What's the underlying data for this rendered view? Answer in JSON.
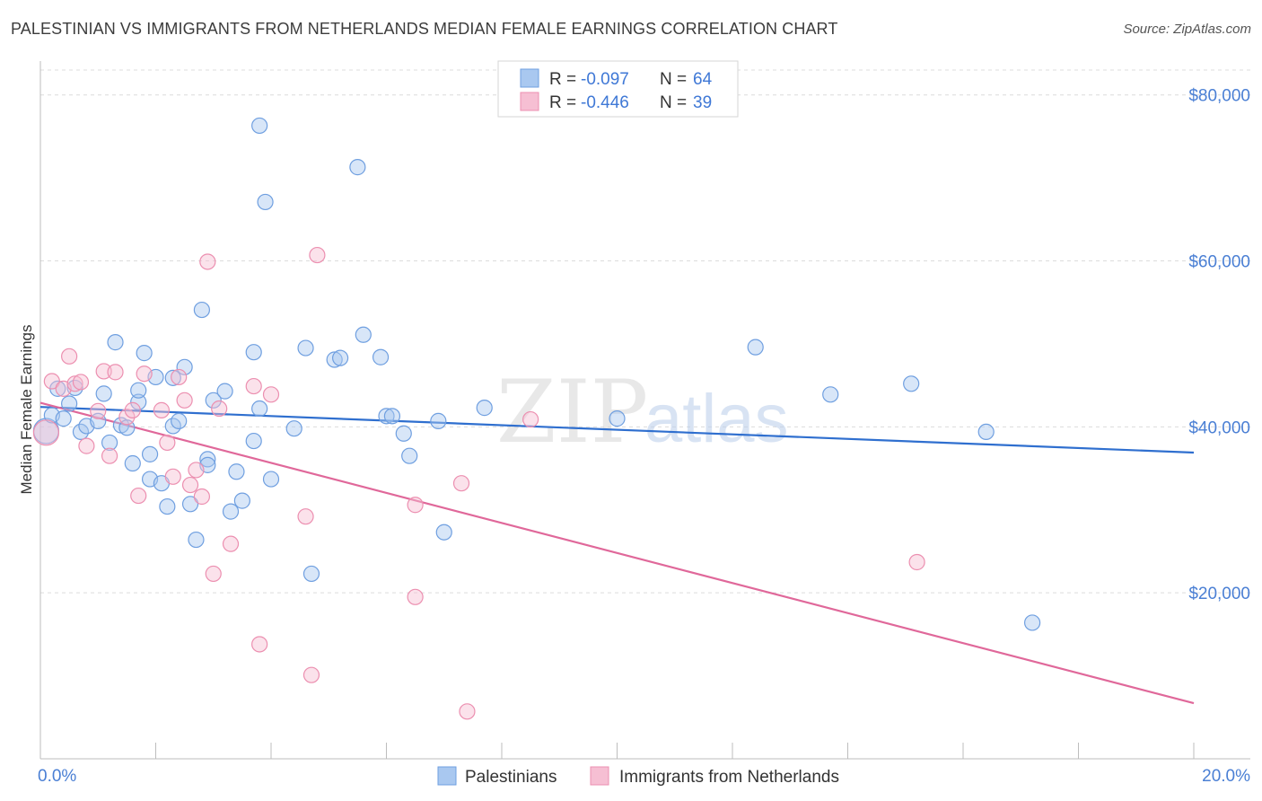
{
  "title": "PALESTINIAN VS IMMIGRANTS FROM NETHERLANDS MEDIAN FEMALE EARNINGS CORRELATION CHART",
  "source": "Source: ZipAtlas.com",
  "watermark": {
    "zip": "ZIP",
    "atlas": "atlas"
  },
  "colors": {
    "blue": "#6f9fe0",
    "blue_fill": "#a9c8f0",
    "blue_line": "#2f6fcf",
    "pink": "#ec8fb0",
    "pink_fill": "#f6bfd3",
    "pink_line": "#e0689a",
    "axis_text": "#4a7fd4"
  },
  "legend": {
    "rows": [
      {
        "r_label": "R = ",
        "r_value": "-0.097",
        "n_label": "N = ",
        "n_value": "64"
      },
      {
        "r_label": "R = ",
        "r_value": "-0.446",
        "n_label": "N = ",
        "n_value": "39"
      }
    ]
  },
  "chart_data": {
    "type": "scatter",
    "title": "PALESTINIAN VS IMMIGRANTS FROM NETHERLANDS MEDIAN FEMALE EARNINGS CORRELATION CHART",
    "xlabel": "",
    "ylabel": "Median Female Earnings",
    "xlim": [
      0,
      20
    ],
    "ylim": [
      0,
      83000
    ],
    "x_tick_labels": {
      "min": "0.0%",
      "max": "20.0%"
    },
    "y_ticks": [
      {
        "value": 20000,
        "label": "$20,000"
      },
      {
        "value": 40000,
        "label": "$40,000"
      },
      {
        "value": 60000,
        "label": "$60,000"
      },
      {
        "value": 80000,
        "label": "$80,000"
      }
    ],
    "grid": true,
    "legend_position": "top-center",
    "series": [
      {
        "name": "Palestinians",
        "color": "blue",
        "trend": {
          "x0": 0,
          "y0": 42400,
          "x1": 20,
          "y1": 36900
        },
        "points": [
          [
            0.1,
            39500
          ],
          [
            0.2,
            41400
          ],
          [
            0.3,
            44600
          ],
          [
            0.4,
            41000
          ],
          [
            0.6,
            44700
          ],
          [
            0.5,
            42800
          ],
          [
            0.7,
            39400
          ],
          [
            0.8,
            40100
          ],
          [
            1.0,
            40700
          ],
          [
            1.1,
            44000
          ],
          [
            1.2,
            38100
          ],
          [
            1.3,
            50200
          ],
          [
            1.4,
            40200
          ],
          [
            1.5,
            39900
          ],
          [
            1.6,
            35600
          ],
          [
            1.7,
            43000
          ],
          [
            1.7,
            44400
          ],
          [
            1.8,
            48900
          ],
          [
            1.9,
            36700
          ],
          [
            1.9,
            33700
          ],
          [
            2.0,
            46000
          ],
          [
            2.1,
            33200
          ],
          [
            2.2,
            30400
          ],
          [
            2.3,
            40100
          ],
          [
            2.3,
            45900
          ],
          [
            2.4,
            40700
          ],
          [
            2.5,
            47200
          ],
          [
            2.6,
            30700
          ],
          [
            2.7,
            26400
          ],
          [
            2.8,
            54100
          ],
          [
            2.9,
            36100
          ],
          [
            2.9,
            35400
          ],
          [
            3.0,
            43200
          ],
          [
            3.2,
            44300
          ],
          [
            3.3,
            29800
          ],
          [
            3.4,
            34600
          ],
          [
            3.5,
            31100
          ],
          [
            3.7,
            38300
          ],
          [
            3.7,
            49000
          ],
          [
            3.8,
            42200
          ],
          [
            3.8,
            76300
          ],
          [
            3.9,
            67100
          ],
          [
            4.0,
            33700
          ],
          [
            4.4,
            39800
          ],
          [
            4.6,
            49500
          ],
          [
            4.7,
            22300
          ],
          [
            5.1,
            48100
          ],
          [
            5.2,
            48300
          ],
          [
            5.5,
            71300
          ],
          [
            5.6,
            51100
          ],
          [
            5.9,
            48400
          ],
          [
            6.0,
            41300
          ],
          [
            6.1,
            41300
          ],
          [
            6.3,
            39200
          ],
          [
            6.4,
            36500
          ],
          [
            7.0,
            27300
          ],
          [
            6.9,
            40700
          ],
          [
            7.7,
            42300
          ],
          [
            10.0,
            41000
          ],
          [
            12.4,
            49600
          ],
          [
            13.7,
            43900
          ],
          [
            15.1,
            45200
          ],
          [
            16.4,
            39400
          ],
          [
            17.2,
            16400
          ]
        ]
      },
      {
        "name": "Immigrants from Netherlands",
        "color": "pink",
        "trend": {
          "x0": 0,
          "y0": 42900,
          "x1": 20,
          "y1": 6700
        },
        "points": [
          [
            0.1,
            39300
          ],
          [
            0.2,
            45500
          ],
          [
            0.4,
            44600
          ],
          [
            0.5,
            48500
          ],
          [
            0.6,
            45200
          ],
          [
            0.7,
            45400
          ],
          [
            0.8,
            37700
          ],
          [
            1.0,
            41900
          ],
          [
            1.1,
            46700
          ],
          [
            1.2,
            36500
          ],
          [
            1.3,
            46600
          ],
          [
            1.5,
            41200
          ],
          [
            1.6,
            42000
          ],
          [
            1.7,
            31700
          ],
          [
            1.8,
            46400
          ],
          [
            2.1,
            42000
          ],
          [
            2.2,
            38100
          ],
          [
            2.3,
            34000
          ],
          [
            2.4,
            46000
          ],
          [
            2.5,
            43200
          ],
          [
            2.6,
            33000
          ],
          [
            2.7,
            34800
          ],
          [
            2.8,
            31600
          ],
          [
            2.9,
            59900
          ],
          [
            3.0,
            22300
          ],
          [
            3.1,
            42200
          ],
          [
            3.3,
            25900
          ],
          [
            3.7,
            44900
          ],
          [
            3.8,
            13800
          ],
          [
            4.0,
            43900
          ],
          [
            4.6,
            29200
          ],
          [
            4.7,
            10100
          ],
          [
            4.8,
            60700
          ],
          [
            6.5,
            30600
          ],
          [
            6.5,
            19500
          ],
          [
            7.3,
            33200
          ],
          [
            7.4,
            5700
          ],
          [
            8.5,
            40900
          ],
          [
            15.2,
            23700
          ]
        ]
      }
    ]
  }
}
